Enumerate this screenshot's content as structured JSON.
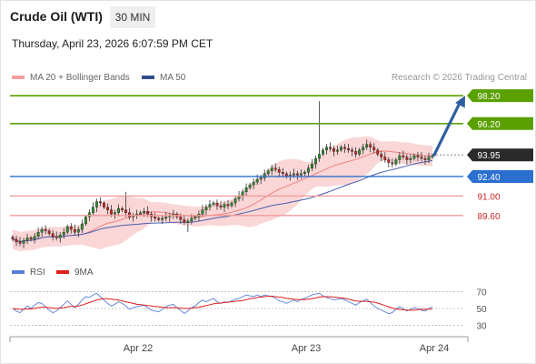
{
  "header": {
    "title": "Crude Oil (WTI)",
    "timeframe": "30 MIN",
    "timestamp": "Thursday, April 23, 2026 6:07:59 PM CET"
  },
  "legend": {
    "ma_bollinger": "MA 20 + Bollinger Bands",
    "ma50": "MA 50",
    "source": "Research © 2026 Trading Central"
  },
  "colors": {
    "bull": "#2e8b2e",
    "bear": "#c62828",
    "bollinger": "#f8c8c8",
    "ma20": "#f08080",
    "ma50": "#4a5fb0",
    "resistance": "#5aa000",
    "support_blue": "#2b6fd1",
    "support_red": "#f19a9a",
    "arrow": "#2e5fa0",
    "rsi": "#5a7ed8",
    "rsi_ma": "#e02020"
  },
  "chart_data": [
    {
      "type": "candlestick",
      "title": "Crude Oil (WTI)",
      "timeframe": "30 MIN",
      "x_ticks": [
        "Apr 22",
        "Apr 23",
        "Apr 24"
      ],
      "ylim": [
        87.3,
        98.8
      ],
      "indicators": [
        "MA 20 + Bollinger Bands",
        "MA 50"
      ],
      "levels": [
        {
          "value": 98.2,
          "label": "98.20",
          "kind": "resistance"
        },
        {
          "value": 96.2,
          "label": "96.20",
          "kind": "resistance"
        },
        {
          "value": 93.95,
          "label": "93.95",
          "kind": "current"
        },
        {
          "value": 92.4,
          "label": "92.40",
          "kind": "pivot"
        },
        {
          "value": 91.0,
          "label": "91.00",
          "kind": "support"
        },
        {
          "value": 89.6,
          "label": "89.60",
          "kind": "support"
        }
      ],
      "projection": {
        "from": 93.95,
        "to": 98.2,
        "direction": "up"
      },
      "close": [
        87.9,
        87.7,
        87.6,
        87.8,
        88.0,
        87.9,
        88.1,
        88.4,
        88.6,
        88.5,
        88.3,
        88.1,
        88.0,
        88.2,
        88.4,
        88.8,
        88.6,
        88.4,
        88.6,
        89.0,
        89.5,
        89.8,
        90.2,
        90.6,
        90.5,
        90.2,
        90.0,
        89.7,
        89.8,
        90.1,
        90.0,
        89.8,
        89.5,
        89.6,
        89.7,
        89.8,
        89.9,
        89.7,
        89.5,
        89.4,
        89.3,
        89.4,
        89.5,
        89.6,
        89.7,
        89.5,
        89.3,
        89.1,
        89.2,
        89.4,
        89.5,
        89.7,
        90.0,
        90.2,
        90.4,
        90.5,
        90.3,
        90.2,
        90.4,
        90.3,
        90.5,
        90.8,
        91.0,
        91.3,
        91.6,
        91.8,
        92.0,
        92.2,
        92.3,
        92.6,
        92.8,
        93.0,
        92.9,
        92.7,
        92.6,
        92.4,
        92.5,
        92.6,
        92.5,
        92.6,
        92.7,
        93.0,
        93.3,
        93.7,
        94.0,
        94.3,
        94.5,
        94.4,
        94.2,
        94.3,
        94.5,
        94.4,
        94.3,
        94.2,
        94.0,
        94.3,
        94.5,
        94.7,
        94.5,
        94.3,
        94.0,
        93.8,
        93.6,
        93.4,
        93.3,
        93.6,
        93.9,
        93.8,
        93.6,
        93.7,
        93.9,
        93.8,
        93.7,
        93.6,
        93.8,
        93.9
      ]
    },
    {
      "type": "line",
      "series": [
        {
          "name": "RSI"
        },
        {
          "name": "9MA"
        }
      ],
      "y_ticks": [
        70,
        50,
        30
      ],
      "ylim": [
        22,
        78
      ],
      "rsi": [
        50,
        47,
        45,
        49,
        53,
        50,
        54,
        57,
        56,
        52,
        48,
        45,
        47,
        51,
        55,
        59,
        55,
        51,
        55,
        60,
        64,
        63,
        66,
        68,
        64,
        60,
        56,
        53,
        55,
        58,
        56,
        53,
        49,
        51,
        52,
        53,
        54,
        51,
        48,
        47,
        46,
        49,
        52,
        54,
        55,
        51,
        48,
        44,
        47,
        51,
        53,
        57,
        60,
        58,
        60,
        62,
        58,
        56,
        58,
        57,
        59,
        61,
        62,
        64,
        66,
        65,
        64,
        66,
        64,
        66,
        65,
        64,
        62,
        59,
        58,
        56,
        58,
        60,
        58,
        61,
        62,
        64,
        66,
        67,
        68,
        65,
        63,
        62,
        60,
        61,
        62,
        60,
        58,
        56,
        54,
        57,
        59,
        61,
        57,
        53,
        50,
        48,
        46,
        44,
        45,
        49,
        52,
        50,
        47,
        49,
        51,
        50,
        48,
        47,
        50,
        52
      ],
      "rsi_ma": [
        50,
        49.5,
        49,
        49,
        49.5,
        49.5,
        50,
        51,
        51.5,
        51.5,
        51,
        50.5,
        50,
        50.5,
        51,
        52,
        52.5,
        52.5,
        53,
        54,
        55.5,
        57,
        58.5,
        60,
        61,
        61.5,
        61.5,
        61,
        60.5,
        60,
        59,
        58,
        57,
        56,
        55,
        54.5,
        54,
        53.5,
        53,
        52.5,
        52,
        51.5,
        51,
        51,
        51,
        51,
        50.5,
        50,
        50,
        50.5,
        51,
        51.5,
        52.5,
        53.5,
        54.5,
        55.5,
        56,
        56.5,
        57,
        57.5,
        58,
        58.5,
        59,
        59.5,
        60.5,
        61.5,
        62,
        63,
        63.5,
        64,
        64.5,
        64.5,
        64,
        63.5,
        63,
        62,
        61.5,
        61,
        60.5,
        60.5,
        60.5,
        61,
        61.5,
        62.5,
        63.5,
        64,
        64,
        64,
        63.5,
        63,
        62.5,
        62,
        61,
        60,
        59,
        58.5,
        58.5,
        58.5,
        58,
        57.5,
        56.5,
        55,
        53.5,
        52,
        50.5,
        49.5,
        49,
        48.5,
        48,
        48,
        48,
        48.5,
        49,
        49,
        49,
        49.5
      ]
    }
  ]
}
